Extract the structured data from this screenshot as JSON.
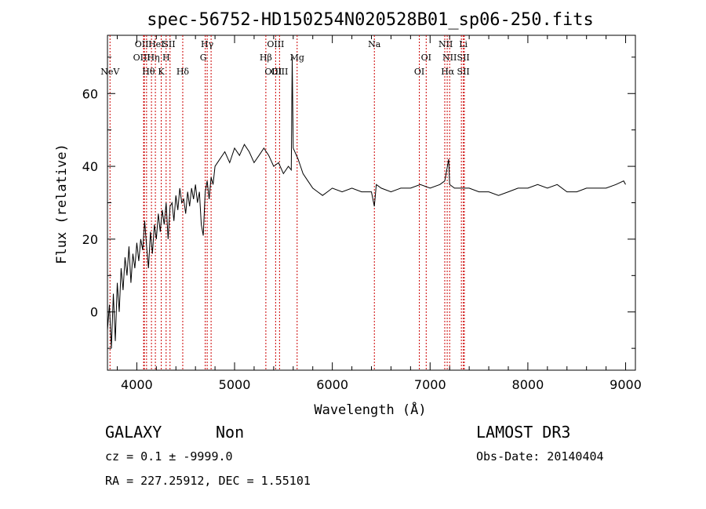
{
  "chart_data": {
    "type": "line",
    "title": "spec-56752-HD150254N020528B01_sp06-250.fits",
    "xlabel": "Wavelength (Å)",
    "ylabel": "Flux (relative)",
    "xlim": [
      3700,
      9100
    ],
    "ylim": [
      -16,
      76
    ],
    "xticks": [
      4000,
      5000,
      6000,
      7000,
      8000,
      9000
    ],
    "yticks": [
      0,
      20,
      40,
      60
    ],
    "spectral_lines": [
      {
        "label": "NeV",
        "x": 3726
      },
      {
        "label": "OII",
        "x": 4070
      },
      {
        "label": "OIII",
        "x": 4077
      },
      {
        "label": "Hθ",
        "x": 4100
      },
      {
        "label": "Hη",
        "x": 4150
      },
      {
        "label": "HeI",
        "x": 4190
      },
      {
        "label": "K",
        "x": 4250
      },
      {
        "label": "H",
        "x": 4300
      },
      {
        "label": "SII",
        "x": 4340
      },
      {
        "label": "Hδ",
        "x": 4470
      },
      {
        "label": "Hγ",
        "x": 4700
      },
      {
        "label": "G",
        "x": 4720
      },
      {
        "label": "OIII",
        "x": 4760
      },
      {
        "label": "Hβ",
        "x": 5320
      },
      {
        "label": "OIII",
        "x": 5420
      },
      {
        "label": "OIII",
        "x": 5460
      },
      {
        "label": "Mg",
        "x": 5640
      },
      {
        "label": "Na",
        "x": 6430
      },
      {
        "label": "OI",
        "x": 6890
      },
      {
        "label": "OI",
        "x": 6960
      },
      {
        "label": "NII",
        "x": 7150
      },
      {
        "label": "Hα",
        "x": 7175
      },
      {
        "label": "NII",
        "x": 7200
      },
      {
        "label": "SII",
        "x": 7320
      },
      {
        "label": "Li",
        "x": 7340
      },
      {
        "label": "SII",
        "x": 7350
      }
    ],
    "label_rows": [
      [
        "OII",
        "HeI",
        "SII",
        "Hγ",
        "OIII",
        "Na",
        "NII",
        "Li"
      ],
      [
        "OIII",
        "Hη",
        "H",
        "G",
        "Hβ",
        "Mg",
        "OI",
        "NII",
        "SII"
      ],
      [
        "NeV",
        "Hθ",
        "K",
        "Hδ",
        "OIII",
        "OIII",
        "OI",
        "Hα",
        "SII"
      ]
    ],
    "series": [
      {
        "x": [
          3700,
          3720,
          3740,
          3760,
          3780,
          3800,
          3820,
          3840,
          3860,
          3880,
          3900,
          3920,
          3940,
          3960,
          3980,
          4000,
          4020,
          4040,
          4060,
          4080,
          4100,
          4120,
          4140,
          4160,
          4180,
          4200,
          4220,
          4240,
          4260,
          4280,
          4300,
          4320,
          4340,
          4360,
          4380,
          4400,
          4420,
          4440,
          4460,
          4480,
          4500,
          4520,
          4540,
          4560,
          4580,
          4600,
          4620,
          4640,
          4660,
          4680,
          4700,
          4720,
          4740,
          4760,
          4780,
          4800,
          4850,
          4900,
          4950,
          5000,
          5050,
          5100,
          5150,
          5200,
          5250,
          5300,
          5350,
          5400,
          5450,
          5500,
          5550,
          5580,
          5590,
          5600,
          5650,
          5700,
          5750,
          5800,
          5850,
          5900,
          5950,
          6000,
          6100,
          6200,
          6300,
          6400,
          6430,
          6450,
          6500,
          6600,
          6700,
          6800,
          6900,
          7000,
          7100,
          7150,
          7190,
          7200,
          7250,
          7300,
          7400,
          7500,
          7600,
          7700,
          7800,
          7900,
          8000,
          8100,
          8200,
          8300,
          8400,
          8500,
          8600,
          8700,
          8800,
          8900,
          8980,
          9000
        ],
        "y": [
          -5,
          2,
          -10,
          5,
          -8,
          8,
          0,
          12,
          6,
          15,
          10,
          18,
          8,
          16,
          12,
          19,
          14,
          20,
          17,
          25,
          18,
          12,
          22,
          16,
          24,
          20,
          27,
          22,
          28,
          24,
          30,
          20,
          29,
          30,
          25,
          32,
          28,
          34,
          30,
          31,
          27,
          33,
          29,
          34,
          31,
          35,
          30,
          33,
          24,
          21,
          33,
          36,
          31,
          37,
          35,
          40,
          42,
          44,
          41,
          45,
          43,
          46,
          44,
          41,
          43,
          45,
          43,
          40,
          41,
          38,
          40,
          39,
          70,
          45,
          42,
          38,
          36,
          34,
          33,
          32,
          33,
          34,
          33,
          34,
          33,
          33,
          29,
          35,
          34,
          33,
          34,
          34,
          35,
          34,
          35,
          36,
          42,
          35,
          34,
          34,
          34,
          33,
          33,
          32,
          33,
          34,
          34,
          35,
          34,
          35,
          33,
          33,
          34,
          34,
          34,
          35,
          36,
          35
        ]
      }
    ]
  },
  "info": {
    "object_class": "GALAXY",
    "subclass": "Non",
    "survey": "LAMOST DR3",
    "cz": "cz = 0.1 ± -9999.0",
    "obs_date": "Obs-Date: 20140404",
    "radec": "RA = 227.25912, DEC =    1.55101"
  },
  "colors": {
    "line_marker": "#cc0000",
    "spectrum": "#000000",
    "axes": "#000000"
  }
}
